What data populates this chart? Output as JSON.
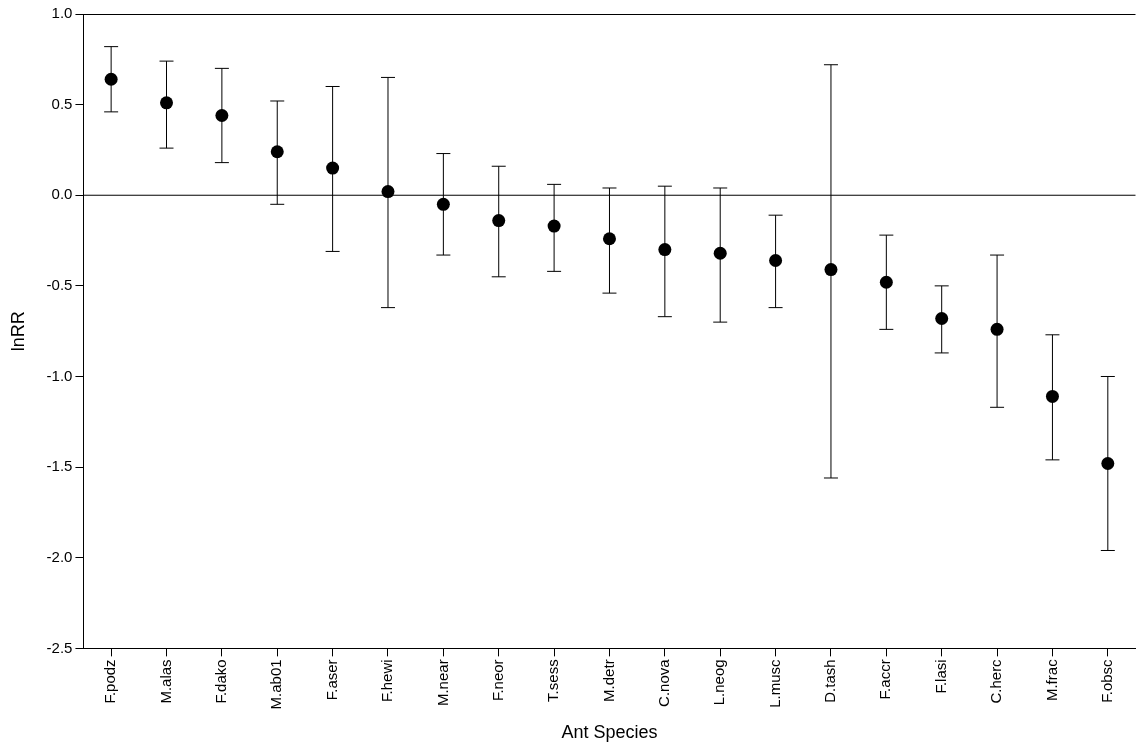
{
  "chart_data": {
    "type": "scatter",
    "xlabel": "Ant Species",
    "ylabel": "lnRR",
    "categories": [
      "F.podz",
      "M.alas",
      "F.dako",
      "M.ab01",
      "F.aser",
      "F.hewi",
      "M.near",
      "F.neor",
      "T.sess",
      "M.detr",
      "C.nova",
      "L.neog",
      "L.musc",
      "D.tash",
      "F.accr",
      "F.lasi",
      "C.herc",
      "M.frac",
      "F.obsc"
    ],
    "values": [
      0.64,
      0.51,
      0.44,
      0.24,
      0.15,
      0.02,
      -0.05,
      -0.14,
      -0.17,
      -0.24,
      -0.3,
      -0.32,
      -0.36,
      -0.41,
      -0.48,
      -0.68,
      -0.74,
      -1.11,
      -1.48
    ],
    "errors": [
      [
        0.46,
        0.82
      ],
      [
        0.26,
        0.74
      ],
      [
        0.18,
        0.7
      ],
      [
        -0.05,
        0.52
      ],
      [
        -0.31,
        0.6
      ],
      [
        -0.62,
        0.65
      ],
      [
        -0.33,
        0.23
      ],
      [
        -0.45,
        0.16
      ],
      [
        -0.42,
        0.06
      ],
      [
        -0.54,
        0.04
      ],
      [
        -0.67,
        0.05
      ],
      [
        -0.7,
        0.04
      ],
      [
        -0.62,
        -0.11
      ],
      [
        -1.56,
        0.72
      ],
      [
        -0.74,
        -0.22
      ],
      [
        -0.87,
        -0.5
      ],
      [
        -1.17,
        -0.33
      ],
      [
        -1.46,
        -0.77
      ],
      [
        -1.96,
        -1.0
      ]
    ],
    "color": "#000000",
    "marker": "circle",
    "ylim": [
      -2.5,
      1.0
    ],
    "yticks": [
      {
        "value": -2.5,
        "label": "-2.5"
      },
      {
        "value": -2,
        "label": "-2.0"
      },
      {
        "value": -1.5,
        "label": "-1.5"
      },
      {
        "value": -1,
        "label": "-1.0"
      },
      {
        "value": -0.5,
        "label": "-0.5"
      },
      {
        "value": 0,
        "label": "0.0"
      },
      {
        "value": 0.5,
        "label": "0.5"
      },
      {
        "value": 1,
        "label": "1.0"
      }
    ],
    "ref_lines": [
      {
        "axis": "y",
        "value": 0,
        "color": "#000000"
      }
    ],
    "grid": false,
    "legend": false
  }
}
